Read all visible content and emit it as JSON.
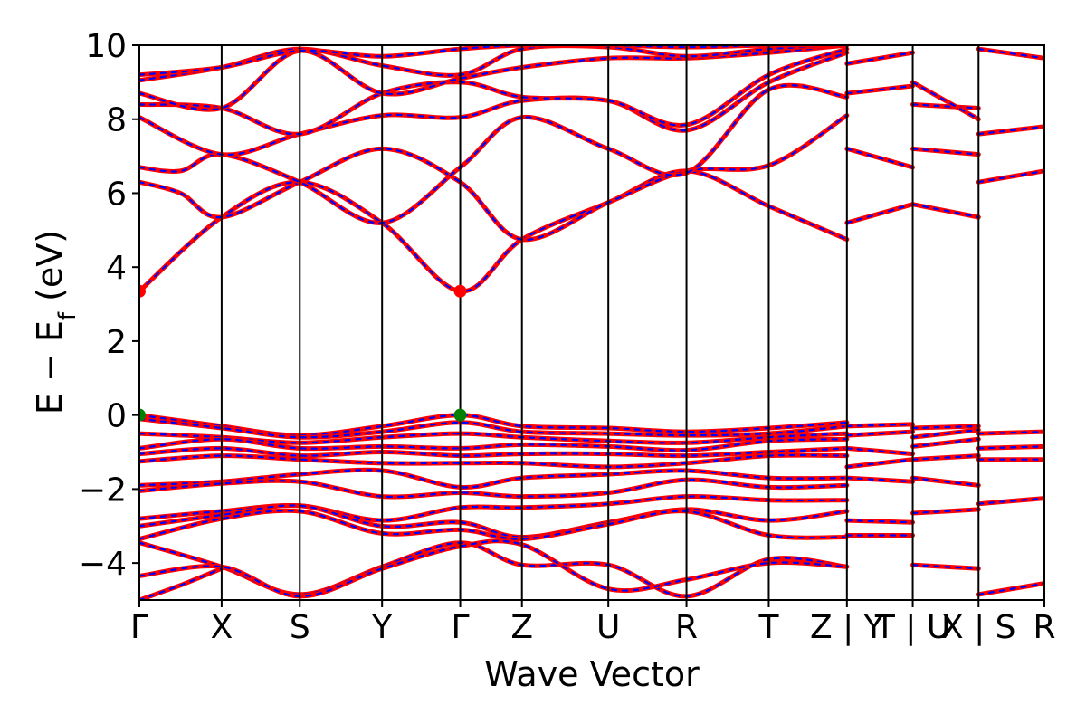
{
  "chart_data": {
    "type": "line",
    "xlabel": "Wave Vector",
    "ylabel_main": "E − E",
    "ylabel_sub": "f",
    "ylabel_unit": " (eV)",
    "ylim": [
      -5,
      10
    ],
    "yticks": [
      -4,
      -2,
      0,
      2,
      4,
      6,
      8,
      10
    ],
    "ytick_labels": [
      "−4",
      "−2",
      "0",
      "2",
      "4",
      "6",
      "8",
      "10"
    ],
    "xlim": [
      0,
      11.0
    ],
    "kpath": [
      {
        "label": "Γ",
        "pos": 0.0
      },
      {
        "label": "X",
        "pos": 1.0
      },
      {
        "label": "S",
        "pos": 1.95
      },
      {
        "label": "Y",
        "pos": 2.95
      },
      {
        "label": "Γ",
        "pos": 3.9
      },
      {
        "label": "Z",
        "pos": 4.65
      },
      {
        "label": "U",
        "pos": 5.7
      },
      {
        "label": "R",
        "pos": 6.65
      },
      {
        "label": "T",
        "pos": 7.65
      },
      {
        "label": "Z | Y",
        "pos": 8.6
      },
      {
        "label": "T | U",
        "pos": 9.4
      },
      {
        "label": "X | S",
        "pos": 10.2
      },
      {
        "label": "R",
        "pos": 11.0
      }
    ],
    "band_colors": {
      "spin_up": "#ff0000",
      "spin_down": "#0000ff"
    },
    "points": [
      {
        "name": "cbm",
        "x": 0.0,
        "y": 3.35,
        "color": "#ff0000"
      },
      {
        "name": "cbm",
        "x": 3.9,
        "y": 3.35,
        "color": "#ff0000"
      },
      {
        "name": "vbm",
        "x": 0.0,
        "y": 0.0,
        "color": "#008000"
      },
      {
        "name": "vbm",
        "x": 3.9,
        "y": 0.0,
        "color": "#008000"
      }
    ],
    "series": [
      {
        "x": [
          0,
          1.0,
          1.95,
          2.95,
          3.9,
          4.65,
          5.7,
          6.65,
          7.65,
          8.6
        ],
        "y": [
          3.35,
          5.35,
          6.3,
          5.2,
          3.35,
          4.75,
          5.75,
          6.6,
          5.65,
          4.75
        ]
      },
      {
        "x": [
          0,
          0.5,
          1.0,
          1.95,
          2.95,
          3.9,
          4.65,
          5.7,
          6.65,
          7.65,
          8.6
        ],
        "y": [
          6.3,
          6.0,
          5.35,
          6.3,
          7.2,
          6.3,
          4.75,
          5.75,
          6.6,
          6.75,
          8.1
        ]
      },
      {
        "x": [
          0,
          0.5,
          1.0,
          1.95,
          2.95,
          3.9,
          4.65,
          5.7,
          6.65,
          7.65,
          8.6
        ],
        "y": [
          6.7,
          6.6,
          7.05,
          6.3,
          5.2,
          6.7,
          8.05,
          7.2,
          6.55,
          8.8,
          8.6
        ]
      },
      {
        "x": [
          0,
          1.0,
          1.95,
          2.95,
          3.9,
          4.65,
          5.7,
          6.65,
          7.65,
          8.6
        ],
        "y": [
          8.05,
          7.05,
          7.6,
          8.1,
          8.05,
          8.5,
          8.5,
          7.7,
          9.0,
          9.8
        ]
      },
      {
        "x": [
          0,
          1.0,
          1.95,
          2.95,
          3.9,
          4.65,
          5.7,
          6.65,
          7.65,
          8.6
        ],
        "y": [
          8.4,
          8.3,
          7.6,
          8.7,
          9.0,
          8.6,
          8.5,
          7.85,
          9.2,
          9.9
        ]
      },
      {
        "x": [
          0,
          1.0,
          1.95,
          2.95,
          3.9,
          4.65,
          5.7,
          6.65,
          7.65,
          8.6
        ],
        "y": [
          8.7,
          8.3,
          9.85,
          8.7,
          9.1,
          9.4,
          9.65,
          9.65,
          9.8,
          10.0
        ]
      },
      {
        "x": [
          0,
          1.0,
          1.95,
          2.95,
          3.9,
          4.65,
          5.7,
          6.65,
          7.65,
          8.6
        ],
        "y": [
          9.05,
          9.4,
          9.9,
          9.45,
          9.2,
          9.9,
          9.95,
          9.7,
          9.9,
          10.0
        ]
      },
      {
        "x": [
          0,
          1.0,
          1.95,
          2.95,
          3.9,
          4.65,
          5.7,
          6.65,
          7.65,
          8.6
        ],
        "y": [
          9.2,
          9.4,
          9.85,
          9.7,
          9.9,
          10.0,
          10.0,
          9.95,
          10.0,
          10.0
        ]
      },
      {
        "x": [
          8.6,
          9.4
        ],
        "y": [
          5.2,
          5.7
        ]
      },
      {
        "x": [
          9.4,
          10.2
        ],
        "y": [
          5.7,
          5.35
        ]
      },
      {
        "x": [
          8.6,
          9.4
        ],
        "y": [
          7.2,
          6.7
        ]
      },
      {
        "x": [
          9.4,
          10.2
        ],
        "y": [
          7.2,
          7.05
        ]
      },
      {
        "x": [
          8.6,
          9.4
        ],
        "y": [
          8.7,
          8.9
        ]
      },
      {
        "x": [
          9.4,
          10.2
        ],
        "y": [
          8.4,
          8.3
        ]
      },
      {
        "x": [
          8.6,
          9.4
        ],
        "y": [
          9.5,
          9.8
        ]
      },
      {
        "x": [
          9.4,
          10.2
        ],
        "y": [
          9.0,
          8.0
        ]
      },
      {
        "x": [
          10.2,
          11.0
        ],
        "y": [
          6.3,
          6.6
        ]
      },
      {
        "x": [
          10.2,
          11.0
        ],
        "y": [
          7.6,
          7.8
        ]
      },
      {
        "x": [
          10.2,
          11.0
        ],
        "y": [
          9.9,
          9.65
        ]
      },
      {
        "x": [
          0,
          1.0,
          1.95,
          2.95,
          3.9,
          4.65,
          5.7,
          6.65,
          7.65,
          8.6
        ],
        "y": [
          0.0,
          -0.3,
          -0.55,
          -0.3,
          0.0,
          -0.3,
          -0.35,
          -0.45,
          -0.35,
          -0.2
        ]
      },
      {
        "x": [
          0,
          1.0,
          1.95,
          2.95,
          3.9,
          4.65,
          5.7,
          6.65,
          7.65,
          8.6
        ],
        "y": [
          -0.1,
          -0.35,
          -0.6,
          -0.45,
          -0.2,
          -0.45,
          -0.5,
          -0.55,
          -0.5,
          -0.3
        ]
      },
      {
        "x": [
          0,
          1.0,
          1.95,
          2.95,
          3.9,
          4.65,
          5.7,
          6.65,
          7.65,
          8.6
        ],
        "y": [
          -0.5,
          -0.6,
          -0.75,
          -0.6,
          -0.5,
          -0.6,
          -0.7,
          -0.75,
          -0.6,
          -0.5
        ]
      },
      {
        "x": [
          0,
          1.0,
          1.95,
          2.95,
          3.9,
          4.65,
          5.7,
          6.65,
          7.65,
          8.6
        ],
        "y": [
          -0.9,
          -0.65,
          -0.9,
          -0.85,
          -0.9,
          -0.8,
          -0.85,
          -0.95,
          -0.7,
          -0.65
        ]
      },
      {
        "x": [
          0,
          1.0,
          1.95,
          2.95,
          3.9,
          4.65,
          5.7,
          6.65,
          7.65,
          8.6
        ],
        "y": [
          -1.05,
          -0.9,
          -1.1,
          -1.0,
          -1.1,
          -1.05,
          -1.05,
          -1.1,
          -1.0,
          -0.9
        ]
      },
      {
        "x": [
          0,
          1.0,
          1.95,
          2.95,
          3.9,
          4.65,
          5.7,
          6.65,
          7.65,
          8.6
        ],
        "y": [
          -1.25,
          -1.1,
          -1.2,
          -1.3,
          -1.3,
          -1.3,
          -1.4,
          -1.3,
          -1.1,
          -1.1
        ]
      },
      {
        "x": [
          0,
          1.0,
          1.95,
          2.95,
          3.9,
          4.65,
          5.7,
          6.65,
          7.65,
          8.6
        ],
        "y": [
          -1.9,
          -1.8,
          -1.6,
          -1.5,
          -1.95,
          -1.7,
          -1.6,
          -1.5,
          -1.7,
          -1.7
        ]
      },
      {
        "x": [
          0,
          1.0,
          1.95,
          2.95,
          3.9,
          4.65,
          5.7,
          6.65,
          7.65,
          8.6
        ],
        "y": [
          -2.05,
          -1.85,
          -1.8,
          -2.2,
          -2.1,
          -2.2,
          -2.1,
          -1.75,
          -1.95,
          -1.9
        ]
      },
      {
        "x": [
          0,
          1.0,
          1.95,
          2.95,
          3.9,
          4.65,
          5.7,
          6.65,
          7.65,
          8.6
        ],
        "y": [
          -2.8,
          -2.6,
          -2.45,
          -2.85,
          -2.5,
          -2.5,
          -2.4,
          -2.2,
          -2.3,
          -2.3
        ]
      },
      {
        "x": [
          0,
          1.0,
          1.95,
          2.95,
          3.9,
          4.65,
          5.7,
          6.65,
          7.65,
          8.6
        ],
        "y": [
          -3.0,
          -2.7,
          -2.45,
          -3.0,
          -2.9,
          -3.3,
          -2.9,
          -2.55,
          -2.85,
          -2.6
        ]
      },
      {
        "x": [
          0,
          1.0,
          1.95,
          2.95,
          3.9,
          4.65,
          5.7,
          6.65,
          7.65,
          8.6
        ],
        "y": [
          -3.35,
          -2.8,
          -2.6,
          -3.2,
          -3.1,
          -3.35,
          -2.95,
          -2.6,
          -3.25,
          -3.3
        ]
      },
      {
        "x": [
          0,
          1.0,
          1.95,
          2.95,
          3.9,
          4.65,
          5.7,
          6.65,
          7.65,
          8.6
        ],
        "y": [
          -3.45,
          -4.1,
          -4.85,
          -4.1,
          -3.45,
          -4.05,
          -4.05,
          -4.9,
          -3.9,
          -4.1
        ]
      },
      {
        "x": [
          0,
          1.0,
          1.95,
          2.95,
          3.9,
          4.65,
          5.7,
          6.65,
          7.65,
          8.6
        ],
        "y": [
          -4.35,
          -4.1,
          -4.9,
          -4.15,
          -3.55,
          -3.5,
          -4.7,
          -4.45,
          -4.0,
          -4.1
        ]
      },
      {
        "x": [
          0,
          0.5,
          1.0
        ],
        "y": [
          -5.0,
          -4.6,
          -4.15
        ]
      },
      {
        "x": [
          8.6,
          9.4
        ],
        "y": [
          -0.3,
          -0.25
        ]
      },
      {
        "x": [
          9.4,
          10.2
        ],
        "y": [
          -0.6,
          -0.4
        ]
      },
      {
        "x": [
          8.6,
          9.4
        ],
        "y": [
          -0.55,
          -0.45
        ]
      },
      {
        "x": [
          9.4,
          10.2
        ],
        "y": [
          -0.35,
          -0.3
        ]
      },
      {
        "x": [
          8.6,
          9.4
        ],
        "y": [
          -0.9,
          -1.05
        ]
      },
      {
        "x": [
          9.4,
          10.2
        ],
        "y": [
          -0.85,
          -0.65
        ]
      },
      {
        "x": [
          8.6,
          9.4
        ],
        "y": [
          -1.4,
          -1.2
        ]
      },
      {
        "x": [
          9.4,
          10.2
        ],
        "y": [
          -1.2,
          -1.1
        ]
      },
      {
        "x": [
          8.6,
          9.4
        ],
        "y": [
          -1.7,
          -1.8
        ]
      },
      {
        "x": [
          9.4,
          10.2
        ],
        "y": [
          -1.7,
          -1.9
        ]
      },
      {
        "x": [
          8.6,
          9.4
        ],
        "y": [
          -2.85,
          -2.9
        ]
      },
      {
        "x": [
          9.4,
          10.2
        ],
        "y": [
          -2.65,
          -2.55
        ]
      },
      {
        "x": [
          8.6,
          9.4
        ],
        "y": [
          -3.25,
          -3.25
        ]
      },
      {
        "x": [
          9.4,
          10.2
        ],
        "y": [
          -4.05,
          -4.15
        ]
      },
      {
        "x": [
          10.2,
          11.0
        ],
        "y": [
          -0.5,
          -0.45
        ]
      },
      {
        "x": [
          10.2,
          11.0
        ],
        "y": [
          -0.9,
          -0.85
        ]
      },
      {
        "x": [
          10.2,
          11.0
        ],
        "y": [
          -1.2,
          -1.2
        ]
      },
      {
        "x": [
          10.2,
          11.0
        ],
        "y": [
          -2.4,
          -2.25
        ]
      },
      {
        "x": [
          10.2,
          11.0
        ],
        "y": [
          -4.85,
          -4.55
        ]
      }
    ]
  }
}
